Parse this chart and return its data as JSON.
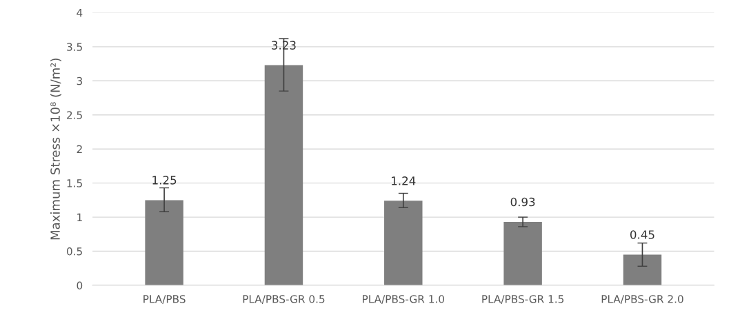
{
  "chart_data": {
    "type": "bar",
    "ylabel": "Maximum Stress ×10⁸ (N/m²)",
    "categories": [
      "PLA/PBS",
      "PLA/PBS-GR 0.5",
      "PLA/PBS-GR 1.0",
      "PLA/PBS-GR 1.5",
      "PLA/PBS-GR 2.0"
    ],
    "values": [
      1.25,
      3.23,
      1.24,
      0.93,
      0.45
    ],
    "errors": [
      [
        1.08,
        1.43
      ],
      [
        2.85,
        3.62
      ],
      [
        1.14,
        1.35
      ],
      [
        0.86,
        1.0
      ],
      [
        0.28,
        0.62
      ]
    ],
    "color": "#7f7f7f",
    "ylim": [
      0,
      4
    ],
    "yticks": [
      0,
      0.5,
      1,
      1.5,
      2,
      2.5,
      3,
      3.5,
      4
    ],
    "grid": "y",
    "data_labels": true
  }
}
